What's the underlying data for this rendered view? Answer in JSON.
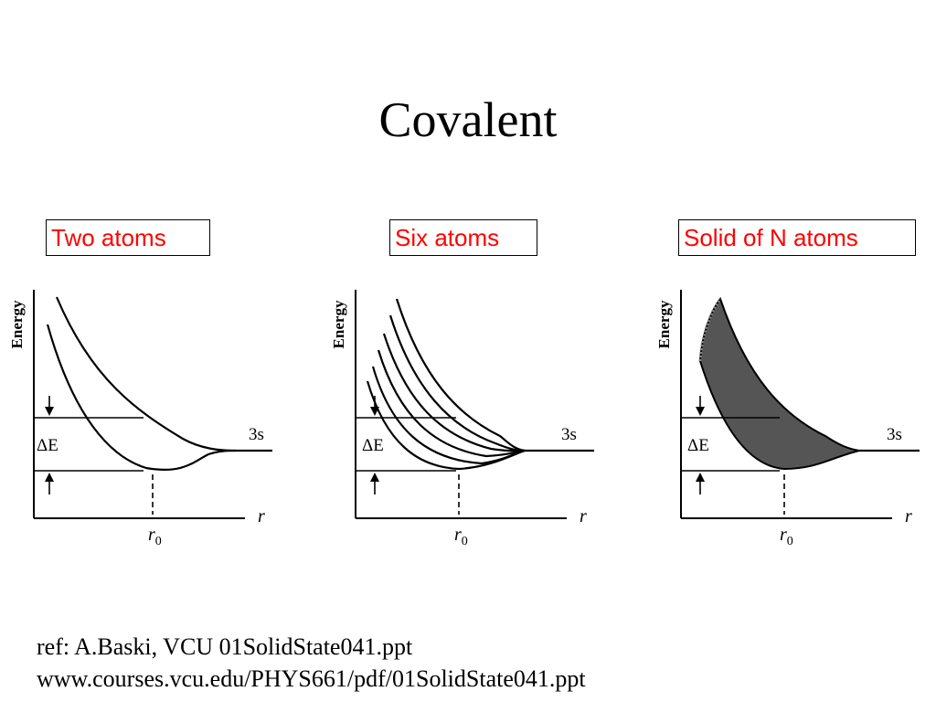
{
  "slide": {
    "title": "Covalent",
    "footer": {
      "ref": "ref:  A.Baski, VCU  01SolidState041.ppt",
      "url": "www.courses.vcu.edu/PHYS661/pdf/01SolidState041.ppt"
    }
  },
  "panels": [
    {
      "label": "Two atoms",
      "ylabel": "Energy",
      "xlabel": "r",
      "r0_label": "r",
      "r0_sub": "0",
      "delta_label": "ΔE",
      "level_label": "3s"
    },
    {
      "label": "Six atoms",
      "ylabel": "Energy",
      "xlabel": "r",
      "r0_label": "r",
      "r0_sub": "0",
      "delta_label": "ΔE",
      "level_label": "3s"
    },
    {
      "label": "Solid of N atoms",
      "ylabel": "Energy",
      "xlabel": "r",
      "r0_label": "r",
      "r0_sub": "0",
      "delta_label": "ΔE",
      "level_label": "3s"
    }
  ],
  "colors": {
    "label_text": "#ff0000",
    "band_fill": "#555555",
    "ink": "#000000"
  }
}
